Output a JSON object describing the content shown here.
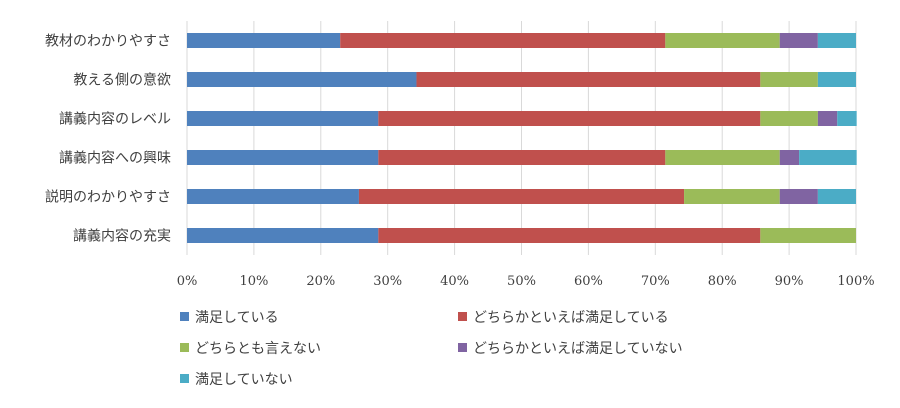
{
  "chart_data": {
    "type": "bar",
    "orientation": "horizontal",
    "stacked": "percent",
    "categories": [
      "教材のわかりやすさ",
      "教える側の意欲",
      "講義内容のレベル",
      "講義内容への興味",
      "説明のわかりやすさ",
      "講義内容の充実"
    ],
    "series": [
      {
        "name": "満足している",
        "color": "#4F81BD",
        "values": [
          22.9,
          34.3,
          28.6,
          28.6,
          25.7,
          28.6
        ]
      },
      {
        "name": "どちらかといえば満足している",
        "color": "#C0504D",
        "values": [
          48.6,
          51.4,
          57.1,
          42.9,
          48.6,
          57.1
        ]
      },
      {
        "name": "どちらとも言えない",
        "color": "#9BBB59",
        "values": [
          17.1,
          8.6,
          8.6,
          17.1,
          14.3,
          14.3
        ]
      },
      {
        "name": "どちらかといえば満足していない",
        "color": "#8064A2",
        "values": [
          5.7,
          0,
          2.9,
          2.9,
          5.7,
          0
        ]
      },
      {
        "name": "満足していない",
        "color": "#4BACC6",
        "values": [
          5.7,
          5.7,
          2.9,
          8.6,
          5.7,
          0
        ]
      }
    ],
    "xlim": [
      0,
      100
    ],
    "x_ticks": [
      "0%",
      "10%",
      "20%",
      "30%",
      "40%",
      "50%",
      "60%",
      "70%",
      "80%",
      "90%",
      "100%"
    ],
    "grid": true,
    "legend": "bottom",
    "title": "",
    "xlabel": "",
    "ylabel": ""
  }
}
